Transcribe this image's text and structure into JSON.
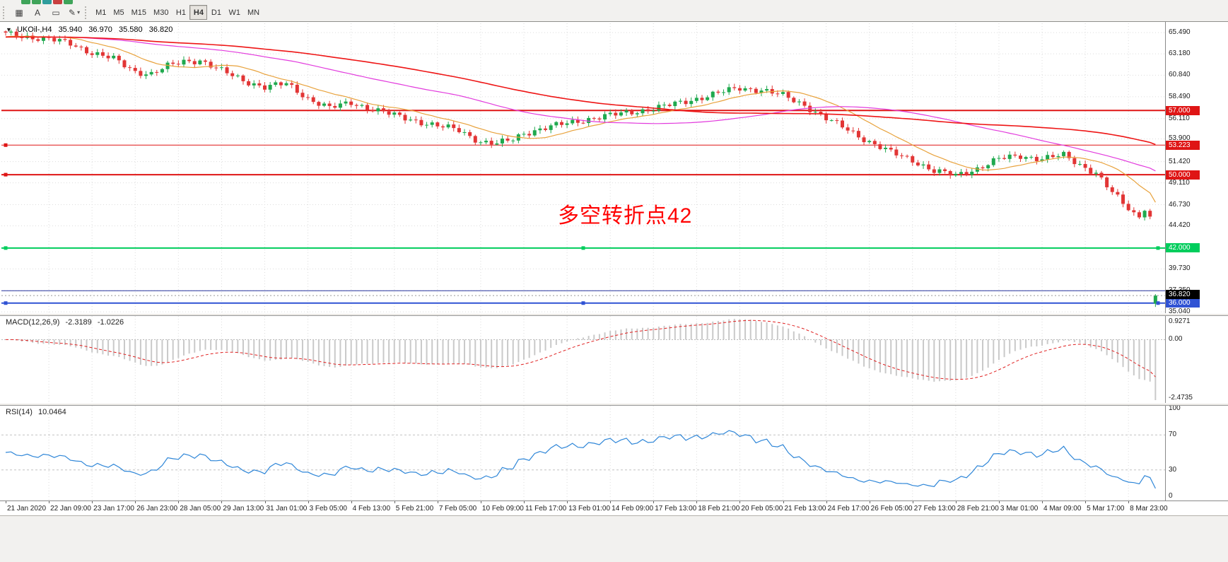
{
  "toolbar": {
    "fragments": [
      {
        "color": "#3fa45a"
      },
      {
        "color": "#3fa45a"
      },
      {
        "color": "#2f9d9d"
      },
      {
        "color": "#c94040"
      },
      {
        "color": "#3fa45a"
      }
    ],
    "tools": [
      {
        "name": "grid-tool",
        "glyph": "▦"
      },
      {
        "name": "text-tool",
        "glyph": "A"
      },
      {
        "name": "frame-tool",
        "glyph": "▭"
      },
      {
        "name": "draw-tool",
        "glyph": "✎",
        "caret": "▾"
      }
    ],
    "timeframes": [
      {
        "label": "M1",
        "active": false
      },
      {
        "label": "M5",
        "active": false
      },
      {
        "label": "M15",
        "active": false
      },
      {
        "label": "M30",
        "active": false
      },
      {
        "label": "H1",
        "active": false
      },
      {
        "label": "H4",
        "active": true
      },
      {
        "label": "D1",
        "active": false
      },
      {
        "label": "W1",
        "active": false
      },
      {
        "label": "MN",
        "active": false
      }
    ]
  },
  "chart": {
    "symbol_period": "UKOil-,H4",
    "ohlc": {
      "open": "35.940",
      "high": "36.970",
      "low": "35.580",
      "close": "36.820"
    },
    "annotation": {
      "text": "多空转折点42",
      "color": "#FF0000"
    },
    "current_price": {
      "label": "36.820",
      "price": 36.82,
      "badge_color": "#000000"
    }
  },
  "indicators": {
    "macd": {
      "title": "MACD(12,26,9)",
      "value_main": "-2.3189",
      "value_signal": "-1.0226",
      "scale": {
        "top": "0.9271",
        "zero": "0.00",
        "bottom": "-2.4735"
      }
    },
    "rsi": {
      "title": "RSI(14)",
      "value": "10.0464",
      "scale": [
        {
          "text": "100",
          "value": 100
        },
        {
          "text": "70",
          "value": 70
        },
        {
          "text": "30",
          "value": 30
        },
        {
          "text": "0",
          "value": 0
        }
      ]
    }
  },
  "price_scale": {
    "labels": [
      {
        "text": "65.490",
        "price": 65.49
      },
      {
        "text": "63.180",
        "price": 63.18
      },
      {
        "text": "60.840",
        "price": 60.84
      },
      {
        "text": "58.490",
        "price": 58.49
      },
      {
        "text": "56.110",
        "price": 56.11
      },
      {
        "text": "53.900",
        "price": 53.9
      },
      {
        "text": "51.420",
        "price": 51.42
      },
      {
        "text": "49.110",
        "price": 49.11
      },
      {
        "text": "46.730",
        "price": 46.73
      },
      {
        "text": "44.420",
        "price": 44.42
      },
      {
        "text": "39.730",
        "price": 39.73
      },
      {
        "text": "37.350",
        "price": 37.35
      },
      {
        "text": "35.040",
        "price": 35.04
      }
    ]
  },
  "time_axis": {
    "labels": [
      "21 Jan 2020",
      "22 Jan 09:00",
      "23 Jan 17:00",
      "26 Jan 23:00",
      "28 Jan 05:00",
      "29 Jan 13:00",
      "31 Jan 01:00",
      "3 Feb 05:00",
      "4 Feb 13:00",
      "5 Feb 21:00",
      "7 Feb 05:00",
      "10 Feb 09:00",
      "11 Feb 17:00",
      "13 Feb 01:00",
      "14 Feb 09:00",
      "17 Feb 13:00",
      "18 Feb 21:00",
      "20 Feb 05:00",
      "21 Feb 13:00",
      "24 Feb 17:00",
      "26 Feb 05:00",
      "27 Feb 13:00",
      "28 Feb 21:00",
      "3 Mar 01:00",
      "4 Mar 09:00",
      "5 Mar 17:00",
      "8 Mar 23:00"
    ]
  },
  "chart_data": {
    "type": "candlestick",
    "symbol": "UKOil-,H4",
    "bars": 214,
    "label_every_bars": 8,
    "price_axis_range": [
      34.9,
      66.5
    ],
    "close_anchors": [
      [
        0,
        65.35
      ],
      [
        4,
        65.05
      ],
      [
        8,
        64.75
      ],
      [
        12,
        64.3
      ],
      [
        16,
        63.3
      ],
      [
        20,
        62.6
      ],
      [
        24,
        61.25
      ],
      [
        27,
        61.0
      ],
      [
        30,
        61.8
      ],
      [
        33,
        62.35
      ],
      [
        36,
        62.5
      ],
      [
        40,
        61.3
      ],
      [
        44,
        60.3
      ],
      [
        48,
        59.55
      ],
      [
        52,
        59.9
      ],
      [
        56,
        58.35
      ],
      [
        60,
        57.25
      ],
      [
        64,
        57.85
      ],
      [
        68,
        57.15
      ],
      [
        72,
        56.45
      ],
      [
        76,
        55.9
      ],
      [
        80,
        55.3
      ],
      [
        84,
        54.85
      ],
      [
        88,
        53.6
      ],
      [
        91,
        53.35
      ],
      [
        94,
        53.85
      ],
      [
        96,
        54.55
      ],
      [
        100,
        55.1
      ],
      [
        104,
        55.6
      ],
      [
        108,
        56.1
      ],
      [
        112,
        56.45
      ],
      [
        116,
        56.85
      ],
      [
        120,
        57.2
      ],
      [
        124,
        57.7
      ],
      [
        128,
        58.3
      ],
      [
        132,
        58.9
      ],
      [
        136,
        59.45
      ],
      [
        140,
        59.25
      ],
      [
        144,
        58.6
      ],
      [
        148,
        57.6
      ],
      [
        152,
        56.1
      ],
      [
        156,
        54.9
      ],
      [
        160,
        53.6
      ],
      [
        164,
        52.4
      ],
      [
        168,
        51.6
      ],
      [
        172,
        50.4
      ],
      [
        176,
        49.9
      ],
      [
        180,
        50.7
      ],
      [
        184,
        51.7
      ],
      [
        188,
        52.05
      ],
      [
        192,
        51.75
      ],
      [
        196,
        52.1
      ],
      [
        199,
        51.1
      ],
      [
        202,
        50.2
      ],
      [
        205,
        48.0
      ],
      [
        208,
        46.3
      ],
      [
        210,
        45.4
      ],
      [
        211,
        46.2
      ],
      [
        212,
        45.4
      ]
    ],
    "last_candle": {
      "open": 35.94,
      "high": 36.97,
      "low": 35.58,
      "close": 36.82
    },
    "candle_colors": {
      "up": "#1FA94E",
      "down": "#E23535"
    },
    "moving_averages": [
      {
        "name": "fast-ma",
        "period": 14,
        "color": "#E8A23C"
      },
      {
        "name": "mid-ma",
        "period": 55,
        "color": "#E23BDD"
      },
      {
        "name": "slow-ma",
        "period": 90,
        "color": "#EE1515"
      }
    ],
    "horizontal_lines": [
      {
        "price": 57.0,
        "label": "57.000",
        "color": "#DF1515",
        "width": 2,
        "handles": "none"
      },
      {
        "price": 53.223,
        "label": "53.223",
        "color": "#DF1515",
        "width": 1,
        "handles": "left"
      },
      {
        "price": 50.0,
        "label": "50.000",
        "color": "#DF1515",
        "width": 2,
        "handles": "left"
      },
      {
        "price": 42.0,
        "label": "42.000",
        "color": "#00CD5C",
        "width": 2,
        "handles": "full"
      },
      {
        "price": 37.35,
        "label": "",
        "color": "#23309B",
        "width": 1,
        "handles": "none"
      },
      {
        "price": 36.0,
        "label": "36.000",
        "color": "#3053D4",
        "width": 2,
        "handles": "full"
      }
    ],
    "indicators": {
      "macd": {
        "fast": 12,
        "slow": 26,
        "signal": 9,
        "value_main": -2.3189,
        "value_signal": -1.0226,
        "scale_max": 0.9271,
        "scale_min": -2.4735,
        "histogram_color": "#C9C9C9",
        "signal_color": "#E02020"
      },
      "rsi": {
        "period": 14,
        "value": 10.0464,
        "levels": [
          30,
          70
        ],
        "line_color": "#2E86D8",
        "scale_range": [
          0,
          100
        ]
      }
    }
  }
}
